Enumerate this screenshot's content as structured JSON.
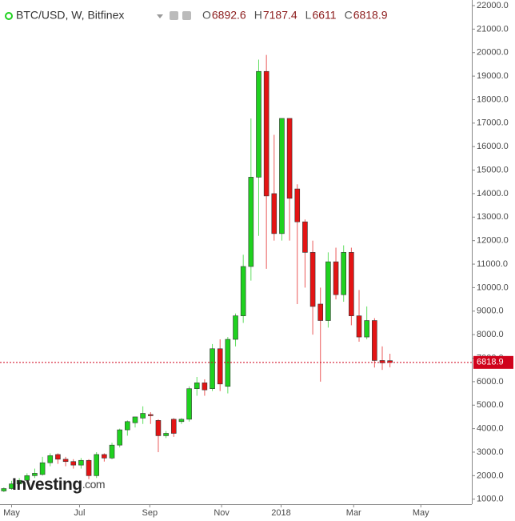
{
  "chart_data": {
    "type": "candlestick",
    "title": "BTC/USD, W, Bitfinex",
    "ohlc_labels": [
      "O",
      "H",
      "L",
      "C"
    ],
    "watermark": "Investing",
    "watermark_suffix": ".com",
    "up_color": "#1fd11f",
    "down_color": "#e31414",
    "last_color": "#d0021b",
    "open": [
      1350,
      1450,
      1650,
      1800,
      2000,
      2050,
      2550,
      2900,
      2700,
      2600,
      2450,
      2650,
      2000,
      2900,
      2750,
      3300,
      3950,
      4250,
      4450,
      4600,
      4350,
      3700,
      4400,
      4300,
      4400,
      5700,
      5950,
      5700,
      7400,
      5800,
      7800,
      8800,
      10900,
      14700,
      19200,
      14000,
      12300,
      17200,
      14200,
      12800,
      11500,
      9300,
      8600,
      11100,
      9700,
      11500,
      8800,
      7900,
      8600,
      6900,
      6892.6
    ],
    "high": [
      1500,
      1780,
      1900,
      2100,
      2300,
      2800,
      2950,
      2950,
      2800,
      2700,
      2750,
      2700,
      3000,
      2950,
      3400,
      4000,
      4350,
      4500,
      4950,
      4700,
      4400,
      3900,
      4450,
      4450,
      5800,
      6200,
      6100,
      7600,
      7800,
      7900,
      8900,
      11400,
      17200,
      19700,
      19900,
      16500,
      17200,
      17200,
      14400,
      12900,
      12000,
      10000,
      11500,
      11700,
      11800,
      11700,
      9900,
      9200,
      8700,
      7500,
      7187.4
    ],
    "low": [
      1300,
      1400,
      1600,
      1750,
      1900,
      2000,
      2400,
      2500,
      2400,
      2300,
      2300,
      1850,
      1900,
      2600,
      2700,
      3200,
      3700,
      4050,
      4200,
      4200,
      3000,
      3600,
      3650,
      4200,
      4300,
      5400,
      5400,
      5600,
      5600,
      5500,
      7500,
      8500,
      10300,
      12200,
      10800,
      12000,
      12000,
      12000,
      9300,
      10000,
      8000,
      6000,
      8300,
      9500,
      9400,
      8400,
      7700,
      7800,
      6600,
      6500,
      6611.0
    ],
    "close": [
      1450,
      1650,
      1800,
      2000,
      2100,
      2550,
      2850,
      2700,
      2600,
      2450,
      2650,
      2000,
      2900,
      2750,
      3300,
      3950,
      4300,
      4500,
      4650,
      4550,
      3700,
      3800,
      3800,
      4400,
      5700,
      5950,
      5650,
      7400,
      5900,
      7800,
      8800,
      10900,
      14700,
      19200,
      13900,
      12300,
      17200,
      13800,
      12800,
      11500,
      9200,
      8600,
      11100,
      9700,
      11500,
      8800,
      7900,
      8600,
      6900,
      6800,
      6818.9
    ],
    "xlim": [
      -0.5,
      60.6
    ],
    "xticks": [
      {
        "value": 1,
        "label": "May"
      },
      {
        "value": 9.8,
        "label": "Jul"
      },
      {
        "value": 18.9,
        "label": "Sep"
      },
      {
        "value": 28.2,
        "label": "Nov"
      },
      {
        "value": 35.9,
        "label": "2018"
      },
      {
        "value": 45.3,
        "label": "Mar"
      },
      {
        "value": 54,
        "label": "May"
      }
    ],
    "ylim": [
      786,
      22000
    ],
    "yticks": [
      {
        "value": 1000,
        "label": "1000.0"
      },
      {
        "value": 2000,
        "label": "2000.0"
      },
      {
        "value": 3000,
        "label": "3000.0"
      },
      {
        "value": 4000,
        "label": "4000.0"
      },
      {
        "value": 5000,
        "label": "5000.0"
      },
      {
        "value": 6000,
        "label": "6000.0"
      },
      {
        "value": 7000,
        "label": "7000.0"
      },
      {
        "value": 8000,
        "label": "8000.0"
      },
      {
        "value": 9000,
        "label": "9000.0"
      },
      {
        "value": 10000,
        "label": "10000.0"
      },
      {
        "value": 11000,
        "label": "11000.0"
      },
      {
        "value": 12000,
        "label": "12000.0"
      },
      {
        "value": 13000,
        "label": "13000.0"
      },
      {
        "value": 14000,
        "label": "14000.0"
      },
      {
        "value": 15000,
        "label": "15000.0"
      },
      {
        "value": 16000,
        "label": "16000.0"
      },
      {
        "value": 17000,
        "label": "17000.0"
      },
      {
        "value": 18000,
        "label": "18000.0"
      },
      {
        "value": 19000,
        "label": "19000.0"
      },
      {
        "value": 20000,
        "label": "20000.0"
      },
      {
        "value": 21000,
        "label": "21000.0"
      },
      {
        "value": 22000,
        "label": "22000.0"
      }
    ]
  }
}
